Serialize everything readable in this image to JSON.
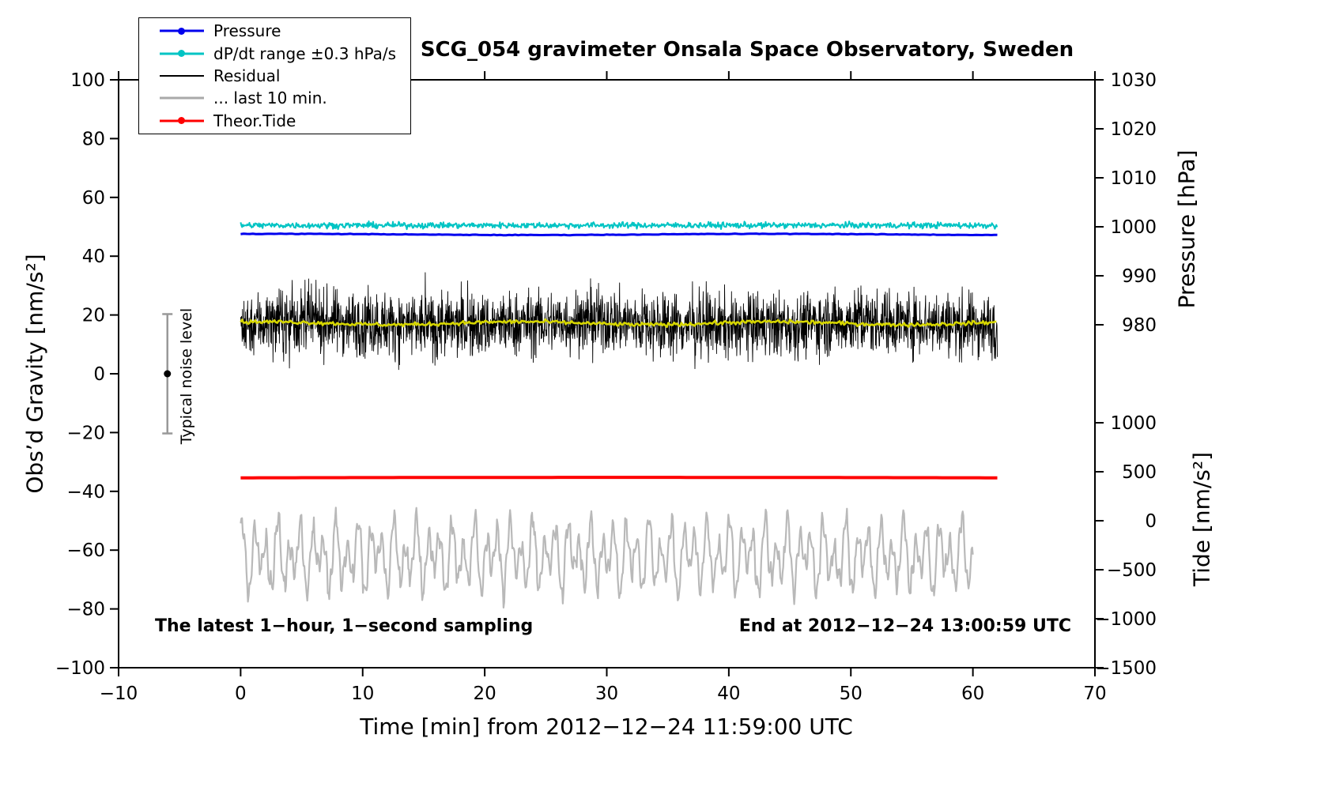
{
  "chart_data": {
    "type": "line",
    "title": "SCG_054 gravimeter Onsala Space Observatory, Sweden",
    "xlabel": "Time [min] from 2012−12−24 11:59:00 UTC",
    "ylabel_left": "Obs’d Gravity [nm/s²]",
    "ylabel_right_pressure": "Pressure [hPa]",
    "ylabel_right_tide": "Tide [nm/s²]",
    "footer_left": "The latest 1−hour, 1−second sampling",
    "footer_right": "End at 2012−12−24 13:00:59 UTC",
    "xlim": [
      -10,
      70
    ],
    "ylim": [
      -100,
      100
    ],
    "grid": false,
    "legend_position": "top-left",
    "x_ticks": [
      {
        "v": -10,
        "label": "−10"
      },
      {
        "v": 0,
        "label": "0"
      },
      {
        "v": 10,
        "label": "10"
      },
      {
        "v": 20,
        "label": "20"
      },
      {
        "v": 30,
        "label": "30"
      },
      {
        "v": 40,
        "label": "40"
      },
      {
        "v": 50,
        "label": "50"
      },
      {
        "v": 60,
        "label": "60"
      },
      {
        "v": 70,
        "label": "70"
      }
    ],
    "y_ticks_left": [
      {
        "v": -100,
        "label": "−100"
      },
      {
        "v": -80,
        "label": "−80"
      },
      {
        "v": -60,
        "label": "−60"
      },
      {
        "v": -40,
        "label": "−40"
      },
      {
        "v": -20,
        "label": "−20"
      },
      {
        "v": 0,
        "label": "0"
      },
      {
        "v": 20,
        "label": "20"
      },
      {
        "v": 40,
        "label": "40"
      },
      {
        "v": 60,
        "label": "60"
      },
      {
        "v": 80,
        "label": "80"
      },
      {
        "v": 100,
        "label": "100"
      }
    ],
    "y_ticks_pressure": [
      {
        "g": 100,
        "label": "1030"
      },
      {
        "g": 83.333,
        "label": "1020"
      },
      {
        "g": 66.667,
        "label": "1010"
      },
      {
        "g": 50,
        "label": "1000"
      },
      {
        "g": 33.333,
        "label": "990"
      },
      {
        "g": 16.667,
        "label": "980"
      }
    ],
    "y_ticks_tide": [
      {
        "g": -16.667,
        "label": "1000"
      },
      {
        "g": -33.333,
        "label": "500"
      },
      {
        "g": -50,
        "label": "0"
      },
      {
        "g": -66.667,
        "label": "−500"
      },
      {
        "g": -83.333,
        "label": "−1000"
      },
      {
        "g": -100,
        "label": "−1500"
      }
    ],
    "legend": {
      "entries": [
        {
          "name": "pressure",
          "label": "Pressure",
          "color": "#0000ee",
          "marker": "dot",
          "line_width": 3
        },
        {
          "name": "dpdt-range",
          "label": "dP/dt range ±0.3 hPa/s",
          "color": "#00c4c4",
          "marker": "dot",
          "line_width": 3
        },
        {
          "name": "residual",
          "label": "Residual",
          "color": "#000000",
          "marker": "line",
          "line_width": 2
        },
        {
          "name": "last-10-min",
          "label": "... last 10 min.",
          "color": "#a9a9a9",
          "marker": "line",
          "line_width": 3
        },
        {
          "name": "theor-tide",
          "label": "Theor.Tide",
          "color": "#ff0000",
          "marker": "dot",
          "line_width": 3
        }
      ]
    },
    "noise_annotation": {
      "label": "Typical noise level",
      "x": -6,
      "center": 0,
      "half_range": 20.3,
      "bar_color": "#999999",
      "dot_color": "#000000"
    },
    "series": [
      {
        "name": "last-10-min",
        "color": "#b9b9b9",
        "width": 2.2,
        "x_start": 0,
        "x_end": 60,
        "step": 0.06,
        "base": -62,
        "noise": 1.2,
        "waves": [
          [
            8.5,
            0.95,
            0.3
          ],
          [
            5,
            1.6,
            2.0
          ],
          [
            3,
            0.35,
            1.0
          ]
        ]
      },
      {
        "name": "theor-tide",
        "color": "#ff0000",
        "width": 4,
        "x_start": 0,
        "x_end": 62,
        "step": 0.5,
        "base": -35.4,
        "noise": 0,
        "waves": [
          [
            0.15,
            124,
            0
          ]
        ],
        "approx_tide_nms2": 435
      },
      {
        "name": "residual",
        "color": "#000000",
        "width": 0.9,
        "x_start": 0,
        "x_end": 62,
        "step": 0.025,
        "base": 17,
        "noise": 5.3,
        "waves": [
          [
            0.8,
            23,
            0
          ]
        ],
        "spike_prob": 0.012,
        "spike_amp": 8,
        "clamp": [
          -3,
          38
        ]
      },
      {
        "name": "residual-smoothed",
        "color": "#d6d600",
        "width": 2.6,
        "x_start": 0,
        "x_end": 62,
        "step": 0.12,
        "base": 17.2,
        "noise": 0.32,
        "waves": [
          [
            0.5,
            21,
            1
          ]
        ]
      },
      {
        "name": "pressure",
        "color": "#0000ee",
        "width": 3,
        "x_start": 0,
        "x_end": 62,
        "step": 0.25,
        "base": 47.4,
        "noise": 0.05,
        "waves": [
          [
            0.2,
            40,
            1
          ]
        ],
        "approx_hPa": 998.4
      },
      {
        "name": "dpdt-range",
        "color": "#00c4c4",
        "width": 2,
        "x_start": 0,
        "x_end": 62,
        "step": 0.06,
        "base": 50.5,
        "noise": 0.5,
        "waves": []
      }
    ]
  }
}
